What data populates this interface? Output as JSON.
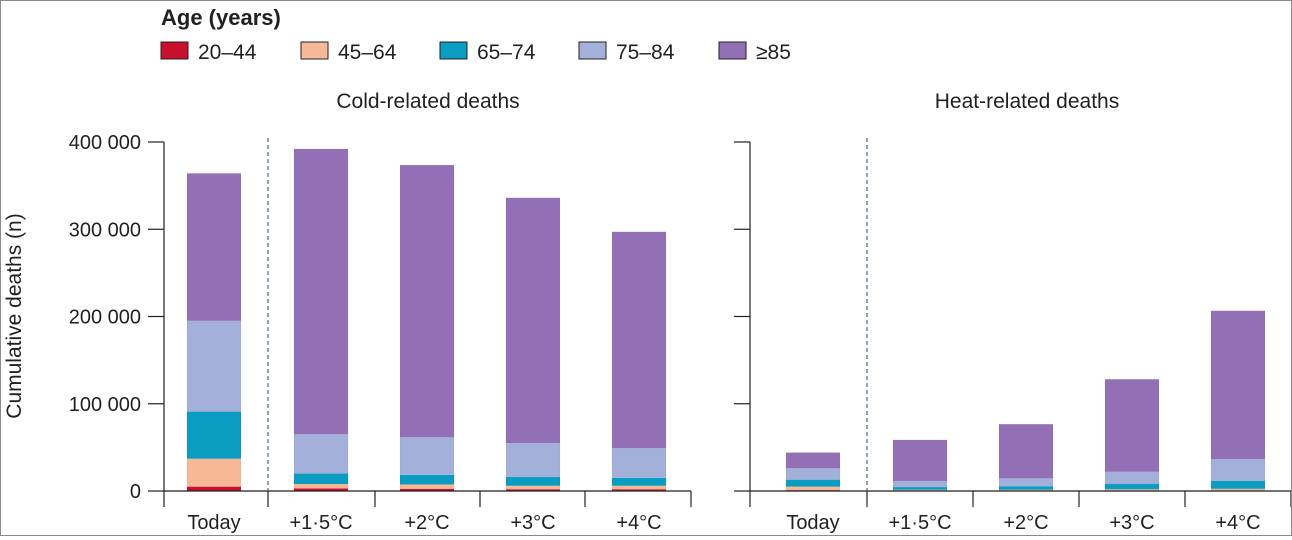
{
  "legend": {
    "title": "Age (years)",
    "items": [
      {
        "label": "20–44",
        "color": "#c8102e"
      },
      {
        "label": "45–64",
        "color": "#f6b896"
      },
      {
        "label": "65–74",
        "color": "#0a9cc1"
      },
      {
        "label": "75–84",
        "color": "#a3b1da"
      },
      {
        "label": "≥85",
        "color": "#9370b5"
      }
    ]
  },
  "chart_data": {
    "type": "bar",
    "stacked": true,
    "ylabel": "Cumulative deaths (n)",
    "ylim": [
      0,
      400000
    ],
    "yticks": [
      0,
      100000,
      200000,
      300000,
      400000
    ],
    "ytick_labels": [
      "0",
      "100 000",
      "200 000",
      "300 000",
      "400 000"
    ],
    "panels": [
      {
        "title": "Cold-related deaths",
        "categories": [
          "Today",
          "+1·5°C",
          "+2°C",
          "+3°C",
          "+4°C"
        ],
        "series": [
          {
            "name": "20–44",
            "values": [
              5000,
              3000,
              2500,
              2000,
              2000
            ]
          },
          {
            "name": "45–64",
            "values": [
              32000,
              5000,
              5000,
              4000,
              4000
            ]
          },
          {
            "name": "65–74",
            "values": [
              54000,
              12000,
              11000,
              10000,
              9000
            ]
          },
          {
            "name": "75–84",
            "values": [
              104000,
              45000,
              43000,
              39000,
              34000
            ]
          },
          {
            "name": "≥85",
            "values": [
              169000,
              327000,
              312000,
              281000,
              248000
            ]
          }
        ]
      },
      {
        "title": "Heat-related deaths",
        "categories": [
          "Today",
          "+1·5°C",
          "+2°C",
          "+3°C",
          "+4°C"
        ],
        "series": [
          {
            "name": "20–44",
            "values": [
              1000,
              500,
              500,
              500,
              500
            ]
          },
          {
            "name": "45–64",
            "values": [
              4000,
              1000,
              1000,
              1500,
              2000
            ]
          },
          {
            "name": "65–74",
            "values": [
              8000,
              3000,
              4000,
              6000,
              9000
            ]
          },
          {
            "name": "75–84",
            "values": [
              13000,
              7000,
              9000,
              14000,
              25000
            ]
          },
          {
            "name": "≥85",
            "values": [
              18000,
              47000,
              62000,
              106000,
              170000
            ]
          }
        ]
      }
    ]
  }
}
